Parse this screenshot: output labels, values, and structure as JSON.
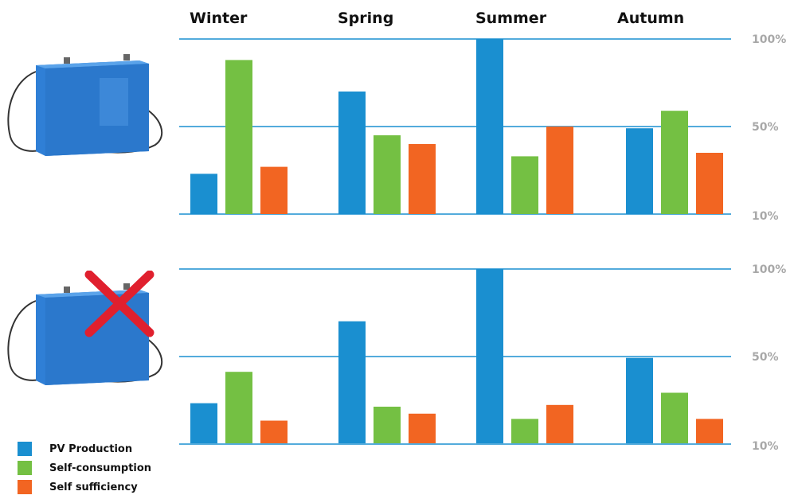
{
  "chart_data": [
    {
      "type": "bar",
      "panel": "with-battery",
      "categories": [
        "Winter",
        "Spring",
        "Summer",
        "Autumn"
      ],
      "series": [
        {
          "name": "PV Production",
          "color": "#1a8fd0",
          "values": [
            23,
            70,
            100,
            49
          ]
        },
        {
          "name": "Self-consumption",
          "color": "#74c043",
          "values": [
            88,
            45,
            33,
            59
          ]
        },
        {
          "name": "Self sufficiency",
          "color": "#f26522",
          "values": [
            27,
            40,
            50,
            35
          ]
        }
      ],
      "y_ticks": [
        "100%",
        "50%",
        "10%"
      ],
      "ylim": [
        0,
        100
      ],
      "grid": true,
      "battery_crossed": false
    },
    {
      "type": "bar",
      "panel": "without-battery",
      "categories": [
        "Winter",
        "Spring",
        "Summer",
        "Autumn"
      ],
      "series": [
        {
          "name": "PV Production",
          "color": "#1a8fd0",
          "values": [
            23,
            70,
            100,
            49
          ]
        },
        {
          "name": "Self-consumption",
          "color": "#74c043",
          "values": [
            41,
            21,
            14,
            29
          ]
        },
        {
          "name": "Self sufficiency",
          "color": "#f26522",
          "values": [
            13,
            17,
            22,
            14
          ]
        }
      ],
      "y_ticks": [
        "100%",
        "50%",
        "10%"
      ],
      "ylim": [
        0,
        100
      ],
      "grid": true,
      "battery_crossed": true
    }
  ],
  "legend": [
    {
      "label": "PV Production",
      "color": "#1a8fd0"
    },
    {
      "label": "Self-consumption",
      "color": "#74c043"
    },
    {
      "label": "Self sufficiency",
      "color": "#f26522"
    }
  ],
  "colors": {
    "gridline": "#1a8fd0",
    "tick_text": "#a8a8a8",
    "cross": "#e0202e",
    "battery": "#2f7fd6"
  },
  "icons": [
    "battery-icon",
    "battery-crossed-icon"
  ]
}
